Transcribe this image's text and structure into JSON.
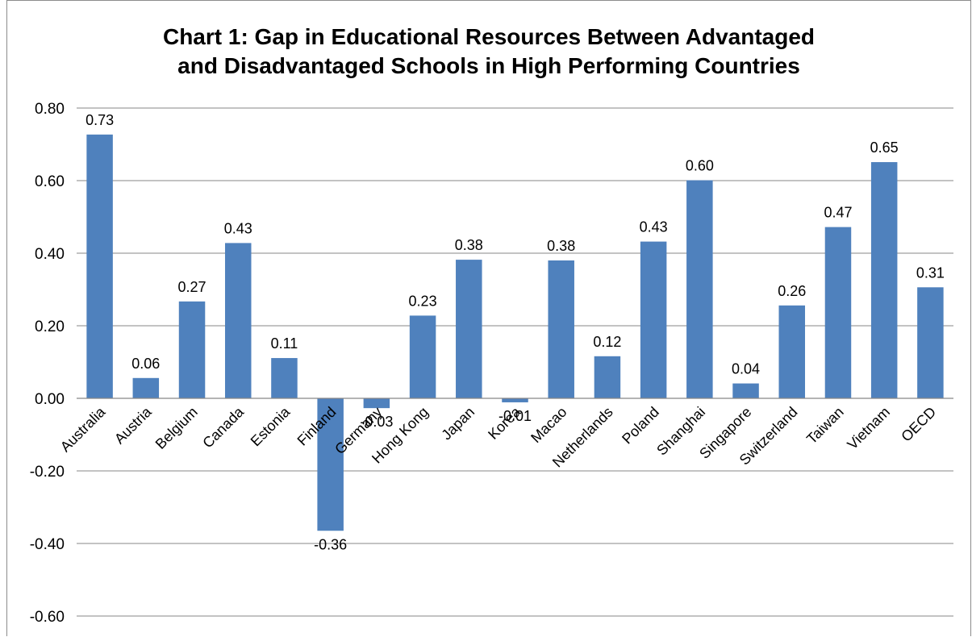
{
  "chart_data": {
    "type": "bar",
    "title_lines": [
      "Chart 1: Gap in Educational Resources Between Advantaged",
      "and Disadvantaged Schools in High Performing Countries"
    ],
    "categories": [
      "Australia",
      "Austria",
      "Belgium",
      "Canada",
      "Estonia",
      "Finland",
      "Germany",
      "Hong Kong",
      "Japan",
      "Korea",
      "Macao",
      "Netherlands",
      "Poland",
      "Shanghai",
      "Singapore",
      "Switzerland",
      "Taiwan",
      "Vietnam",
      "OECD"
    ],
    "values": [
      0.727,
      0.056,
      0.267,
      0.428,
      0.111,
      -0.365,
      -0.027,
      0.228,
      0.382,
      -0.011,
      0.38,
      0.116,
      0.432,
      0.601,
      0.041,
      0.256,
      0.472,
      0.651,
      0.306
    ],
    "data_labels": [
      "0.73",
      "0.06",
      "0.27",
      "0.43",
      "0.11",
      "-0.36",
      "-0.03",
      "0.23",
      "0.38",
      "-0.01",
      "0.38",
      "0.12",
      "0.43",
      "0.60",
      "0.04",
      "0.26",
      "0.47",
      "0.65",
      "0.31"
    ],
    "ylim": [
      -0.6,
      0.8
    ],
    "yticks": [
      -0.6,
      -0.4,
      -0.2,
      0.0,
      0.2,
      0.4,
      0.6,
      0.8
    ],
    "ytick_labels": [
      "-0.60",
      "-0.40",
      "-0.20",
      "0.00",
      "0.20",
      "0.40",
      "0.60",
      "0.80"
    ],
    "grid": true,
    "legend": "none",
    "bar_color": "#4f81bd",
    "grid_color": "#878787",
    "xlabel": "",
    "ylabel": ""
  }
}
